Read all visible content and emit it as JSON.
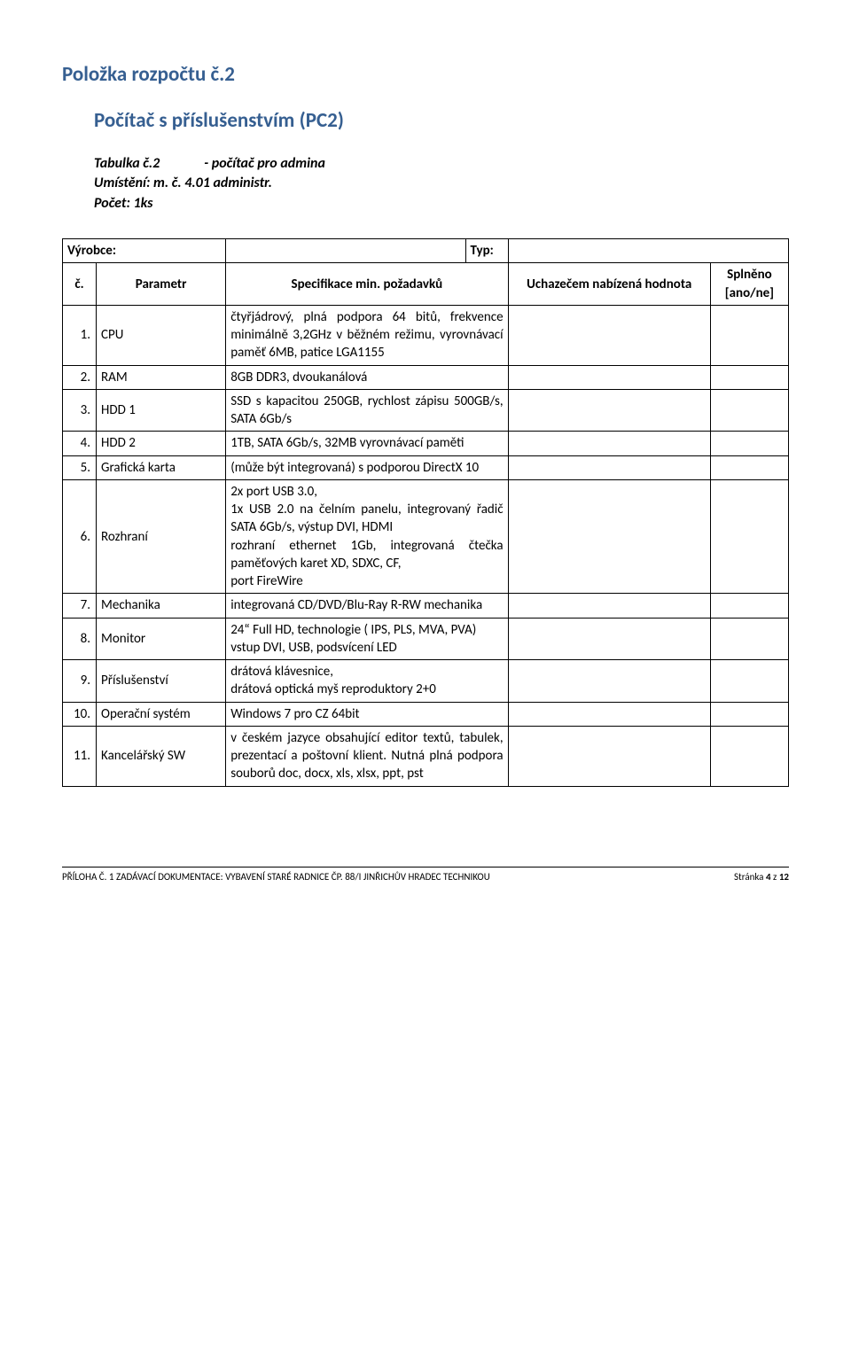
{
  "heading_main": "Položka rozpočtu č.2",
  "heading_sub": "Počítač s příslušenstvím (PC2)",
  "meta_table": "Tabulka č.2",
  "meta_desc": "- počítač pro admina",
  "meta_location": "Umístění: m. č. 4.01 administr.",
  "meta_count": "Počet: 1ks",
  "manu_label": "Výrobce:",
  "type_label": "Typ:",
  "hdr_num": "č.",
  "hdr_param": "Parametr",
  "hdr_spec": "Specifikace min. požadavků",
  "hdr_offered": "Uchazečem nabízená hodnota",
  "hdr_fulfilled": "Splněno [ano/ne]",
  "rows": [
    {
      "n": "1.",
      "param": "CPU",
      "spec": "čtyřjádrový, plná podpora 64 bitů, frekvence minimálně 3,2GHz v běžném režimu, vyrovnávací paměť 6MB, patice LGA1155"
    },
    {
      "n": "2.",
      "param": "RAM",
      "spec": "8GB DDR3, dvoukanálová"
    },
    {
      "n": "3.",
      "param": "HDD 1",
      "spec": "SSD s kapacitou 250GB, rychlost zápisu 500GB/s, SATA 6Gb/s"
    },
    {
      "n": "4.",
      "param": "HDD 2",
      "spec": "1TB, SATA 6Gb/s, 32MB vyrovnávací paměti"
    },
    {
      "n": "5.",
      "param": "Grafická karta",
      "spec": "(může být integrovaná) s podporou DirectX 10"
    },
    {
      "n": "6.",
      "param": "Rozhraní",
      "spec": "2x port USB 3.0,\n1x USB 2.0 na čelním panelu, integrovaný řadič SATA 6Gb/s, výstup DVI, HDMI\nrozhraní ethernet 1Gb, integrovaná čtečka paměťových karet XD, SDXC, CF,\nport FireWire"
    },
    {
      "n": "7.",
      "param": "Mechanika",
      "spec": "integrovaná CD/DVD/Blu-Ray R-RW mechanika"
    },
    {
      "n": "8.",
      "param": "Monitor",
      "spec": "24“ Full HD, technologie ( IPS, PLS, MVA, PVA)\nvstup DVI, USB, podsvícení LED"
    },
    {
      "n": "9.",
      "param": "Příslušenství",
      "spec": "drátová klávesnice,\ndrátová optická myš reproduktory 2+0"
    },
    {
      "n": "10.",
      "param": "Operační systém",
      "spec": "Windows 7 pro CZ 64bit"
    },
    {
      "n": "11.",
      "param": "Kancelářský SW",
      "spec": "v českém jazyce obsahující editor textů, tabulek, prezentací a poštovní klient. Nutná plná podpora souborů doc, docx, xls, xlsx, ppt, pst"
    }
  ],
  "footer_left": "PŘÍLOHA Č. 1 ZADÁVACÍ DOKUMENTACE: VYBAVENÍ STARÉ RADNICE ČP. 88/I JINŘICHŮV HRADEC TECHNIKOU",
  "footer_right": "Stránka 4 z 12"
}
